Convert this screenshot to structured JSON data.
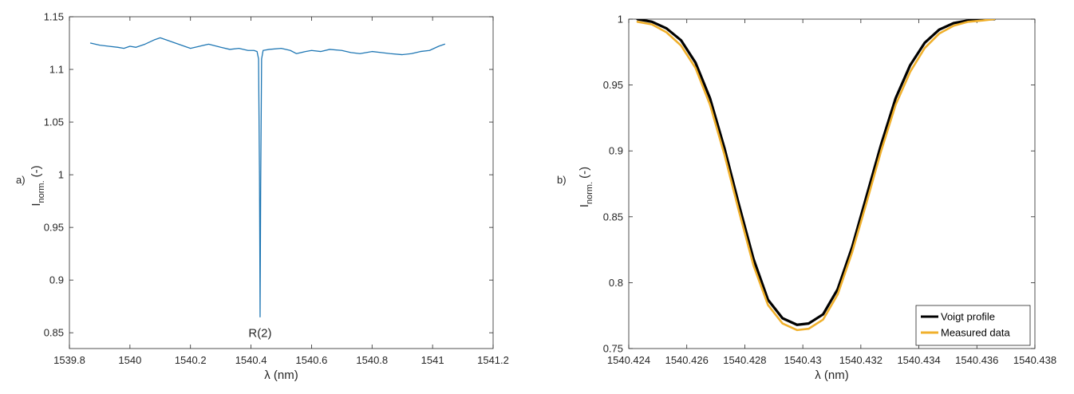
{
  "chart_data": [
    {
      "type": "line",
      "panel_label": "a)",
      "xlabel": "λ (nm)",
      "ylabel_main": "I",
      "ylabel_sub": "norm.",
      "ylabel_suffix": "(-)",
      "xlim": [
        1539.8,
        1541.2
      ],
      "ylim": [
        0.835,
        1.15
      ],
      "xticks": [
        1539.8,
        1540,
        1540.2,
        1540.4,
        1540.6,
        1540.8,
        1541,
        1541.2
      ],
      "xtick_labels": [
        "1539.8",
        "1540",
        "1540.2",
        "1540.4",
        "1540.6",
        "1540.8",
        "1541",
        "1541.2"
      ],
      "yticks": [
        0.85,
        0.9,
        0.95,
        1,
        1.05,
        1.1,
        1.15
      ],
      "ytick_labels": [
        "0.85",
        "0.9",
        "0.95",
        "1",
        "1.05",
        "1.1",
        "1.15"
      ],
      "grid": false,
      "annotations": [
        {
          "text": "R(2)",
          "x": 1540.43,
          "y": 0.855
        }
      ],
      "series": [
        {
          "color": "#1f77b4",
          "x": [
            1539.87,
            1539.9,
            1539.93,
            1539.96,
            1539.98,
            1540.0,
            1540.02,
            1540.05,
            1540.08,
            1540.1,
            1540.12,
            1540.15,
            1540.18,
            1540.2,
            1540.23,
            1540.26,
            1540.3,
            1540.33,
            1540.36,
            1540.39,
            1540.41,
            1540.42,
            1540.425,
            1540.428,
            1540.43,
            1540.432,
            1540.435,
            1540.44,
            1540.46,
            1540.5,
            1540.53,
            1540.55,
            1540.58,
            1540.6,
            1540.63,
            1540.66,
            1540.7,
            1540.73,
            1540.76,
            1540.8,
            1540.83,
            1540.86,
            1540.9,
            1540.93,
            1540.96,
            1540.99,
            1541.02,
            1541.04
          ],
          "y": [
            1.125,
            1.123,
            1.122,
            1.121,
            1.12,
            1.122,
            1.121,
            1.124,
            1.128,
            1.13,
            1.128,
            1.125,
            1.122,
            1.12,
            1.122,
            1.124,
            1.121,
            1.119,
            1.12,
            1.118,
            1.118,
            1.117,
            1.11,
            1.0,
            0.865,
            0.99,
            1.11,
            1.118,
            1.119,
            1.12,
            1.118,
            1.115,
            1.117,
            1.118,
            1.117,
            1.119,
            1.118,
            1.116,
            1.115,
            1.117,
            1.116,
            1.115,
            1.114,
            1.115,
            1.117,
            1.118,
            1.122,
            1.124
          ]
        }
      ]
    },
    {
      "type": "line",
      "panel_label": "b)",
      "xlabel": "λ (nm)",
      "ylabel_main": "I",
      "ylabel_sub": "norm.",
      "ylabel_suffix": "(-)",
      "xlim": [
        1540.424,
        1540.438
      ],
      "ylim": [
        0.75,
        1.0
      ],
      "xticks": [
        1540.424,
        1540.426,
        1540.428,
        1540.43,
        1540.432,
        1540.434,
        1540.436,
        1540.438
      ],
      "xtick_labels": [
        "1540.424",
        "1540.426",
        "1540.428",
        "1540.43",
        "1540.432",
        "1540.434",
        "1540.436",
        "1540.438"
      ],
      "yticks": [
        0.75,
        0.8,
        0.85,
        0.9,
        0.95,
        1
      ],
      "ytick_labels": [
        "0.75",
        "0.8",
        "0.85",
        "0.9",
        "0.95",
        "1"
      ],
      "grid": false,
      "legend_position": "bottom-right",
      "series": [
        {
          "name": "Voigt profile",
          "color": "#000000",
          "x": [
            1540.4243,
            1540.4248,
            1540.4253,
            1540.4258,
            1540.4263,
            1540.4268,
            1540.4273,
            1540.4278,
            1540.4283,
            1540.4288,
            1540.4293,
            1540.4298,
            1540.4302,
            1540.4307,
            1540.4312,
            1540.4317,
            1540.4322,
            1540.4327,
            1540.4332,
            1540.4337,
            1540.4342,
            1540.4347,
            1540.4352,
            1540.4357,
            1540.4362,
            1540.4366
          ],
          "y": [
            1.0,
            0.998,
            0.993,
            0.984,
            0.967,
            0.94,
            0.902,
            0.859,
            0.818,
            0.787,
            0.773,
            0.768,
            0.769,
            0.776,
            0.795,
            0.827,
            0.866,
            0.905,
            0.94,
            0.965,
            0.982,
            0.992,
            0.997,
            0.999,
            1.0,
            1.0
          ]
        },
        {
          "name": "Measured data",
          "color": "#f0b02c",
          "x": [
            1540.4243,
            1540.4248,
            1540.4253,
            1540.4258,
            1540.4263,
            1540.4268,
            1540.4273,
            1540.4278,
            1540.4283,
            1540.4288,
            1540.4293,
            1540.4298,
            1540.4302,
            1540.4307,
            1540.4312,
            1540.4317,
            1540.4322,
            1540.4327,
            1540.4332,
            1540.4337,
            1540.4342,
            1540.4347,
            1540.4352,
            1540.4357,
            1540.4362,
            1540.4366
          ],
          "y": [
            0.998,
            0.996,
            0.99,
            0.98,
            0.963,
            0.935,
            0.897,
            0.854,
            0.813,
            0.783,
            0.769,
            0.764,
            0.765,
            0.772,
            0.791,
            0.823,
            0.861,
            0.9,
            0.935,
            0.96,
            0.978,
            0.989,
            0.995,
            0.998,
            0.999,
            1.0
          ]
        }
      ]
    }
  ]
}
